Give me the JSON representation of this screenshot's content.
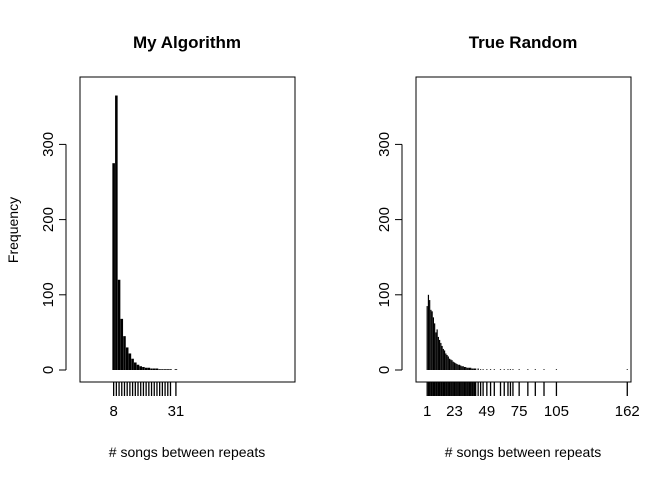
{
  "figure": {
    "shared_ylabel": "Frequency"
  },
  "chart_data": [
    {
      "type": "bar",
      "title": "My Algorithm",
      "xlabel": "# songs between repeats",
      "ylabel": "Frequency",
      "ylim": [
        0,
        375
      ],
      "yticks": [
        0,
        100,
        200,
        300
      ],
      "xlim": [
        0,
        75
      ],
      "xtick_labels": [
        8,
        31
      ],
      "x": [
        8,
        9,
        10,
        11,
        12,
        13,
        14,
        15,
        16,
        17,
        18,
        19,
        20,
        21,
        22,
        23,
        24,
        25,
        26,
        27,
        28,
        29,
        30,
        31
      ],
      "values": [
        275,
        365,
        120,
        68,
        45,
        30,
        22,
        15,
        10,
        7,
        5,
        4,
        3,
        3,
        2,
        2,
        2,
        1,
        1,
        1,
        1,
        1,
        0,
        1
      ],
      "rug": [
        8,
        9,
        10,
        11,
        12,
        13,
        14,
        15,
        16,
        17,
        18,
        19,
        20,
        21,
        22,
        23,
        24,
        25,
        26,
        27,
        28,
        29,
        31
      ],
      "grid": false
    },
    {
      "type": "bar",
      "title": "True Random",
      "xlabel": "# songs between repeats",
      "ylabel": "",
      "ylim": [
        0,
        375
      ],
      "yticks": [
        0,
        100,
        200,
        300
      ],
      "xlim": [
        -8,
        165
      ],
      "xtick_labels": [
        1,
        23,
        49,
        75,
        105,
        162
      ],
      "x": [
        1,
        2,
        3,
        4,
        5,
        6,
        7,
        8,
        9,
        10,
        11,
        12,
        13,
        14,
        15,
        16,
        17,
        18,
        19,
        20,
        21,
        22,
        23,
        24,
        25,
        26,
        27,
        28,
        29,
        30,
        31,
        32,
        33,
        34,
        35,
        36,
        37,
        38,
        39,
        40,
        42,
        44,
        46,
        49,
        52,
        55,
        60,
        63,
        66,
        68,
        70,
        75,
        82,
        88,
        95,
        105,
        162
      ],
      "values": [
        85,
        100,
        93,
        80,
        78,
        70,
        62,
        50,
        54,
        44,
        40,
        36,
        32,
        28,
        26,
        22,
        20,
        18,
        15,
        14,
        13,
        11,
        10,
        9,
        8,
        7,
        7,
        6,
        5,
        5,
        4,
        4,
        3,
        3,
        3,
        3,
        2,
        2,
        2,
        2,
        2,
        1,
        1,
        1,
        1,
        1,
        1,
        1,
        1,
        1,
        1,
        1,
        1,
        1,
        1,
        1,
        1
      ],
      "rug": [
        1,
        2,
        3,
        4,
        5,
        6,
        7,
        8,
        9,
        10,
        11,
        12,
        13,
        14,
        15,
        16,
        17,
        18,
        19,
        20,
        21,
        22,
        23,
        24,
        25,
        26,
        27,
        28,
        29,
        30,
        31,
        32,
        33,
        34,
        35,
        36,
        37,
        38,
        39,
        40,
        42,
        44,
        46,
        49,
        52,
        55,
        60,
        63,
        66,
        68,
        70,
        75,
        82,
        88,
        95,
        105,
        162
      ],
      "grid": false
    }
  ]
}
